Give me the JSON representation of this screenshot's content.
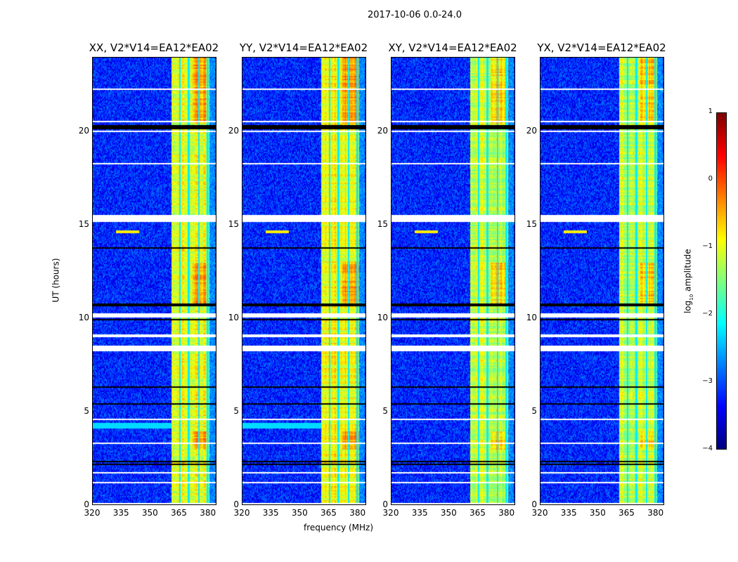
{
  "chart_data": {
    "type": "heatmap",
    "title": "2017-10-06 0.0-24.0",
    "xlabel": "frequency (MHz)",
    "ylabel": "UT (hours)",
    "xlim": [
      320,
      384.5
    ],
    "ylim": [
      0,
      24
    ],
    "xticks": [
      "320",
      "335",
      "350",
      "365",
      "380"
    ],
    "xtick_values": [
      320,
      335,
      350,
      365,
      380
    ],
    "yticks": [
      "0",
      "5",
      "10",
      "15",
      "20"
    ],
    "ytick_values": [
      0,
      5,
      10,
      15,
      20
    ],
    "panels": [
      {
        "title": "XX, V2*V14=EA12*EA02",
        "band_level": -1.0,
        "seed": 1,
        "blue_band": true
      },
      {
        "title": "YY, V2*V14=EA12*EA02",
        "band_level": -0.9,
        "seed": 2,
        "blue_band": true
      },
      {
        "title": "XY, V2*V14=EA12*EA02",
        "band_level": -1.2,
        "seed": 3,
        "blue_band": false
      },
      {
        "title": "YX, V2*V14=EA12*EA02",
        "band_level": -1.2,
        "seed": 4,
        "blue_band": false
      }
    ],
    "background_level": -3.2,
    "rfi_band_MHz": [
      361,
      381
    ],
    "band_gaps_MHz": [
      365.5,
      370,
      375.5,
      380
    ],
    "flagged_hours_white": [
      [
        15.2,
        15.6
      ],
      [
        10.1,
        10.3
      ],
      [
        9.0,
        9.2
      ],
      [
        8.3,
        8.6
      ],
      [
        20.55,
        20.65
      ],
      [
        20.05,
        20.1
      ],
      [
        22.3,
        22.35
      ],
      [
        21.9,
        21.95
      ],
      [
        18.3,
        18.35
      ],
      [
        17.0,
        17.05
      ],
      [
        13.0,
        13.05
      ],
      [
        12.7,
        12.75
      ],
      [
        4.6,
        4.65
      ],
      [
        3.7,
        3.75
      ],
      [
        3.3,
        3.35
      ],
      [
        1.7,
        1.75
      ],
      [
        1.2,
        1.25
      ],
      [
        0.05,
        0.1
      ]
    ],
    "flagged_hours_black": [
      [
        20.2,
        20.45
      ],
      [
        23.1,
        23.15
      ],
      [
        10.7,
        10.8
      ],
      [
        9.95,
        10.0
      ],
      [
        6.3,
        6.35
      ],
      [
        5.4,
        5.45
      ],
      [
        2.3,
        2.35
      ],
      [
        2.15,
        2.2
      ],
      [
        13.8,
        13.85
      ],
      [
        14.8,
        14.85
      ]
    ],
    "colorbar": {
      "label": "log10 amplitude",
      "label_main": "log",
      "label_sub": "10",
      "label_rest": " amplitude",
      "range": [
        -4,
        1
      ],
      "ticks": [
        "1",
        "0",
        "−1",
        "−2",
        "−3",
        "−4"
      ],
      "tick_values": [
        1,
        0,
        -1,
        -2,
        -3,
        -4
      ],
      "colormap": "jet"
    }
  }
}
